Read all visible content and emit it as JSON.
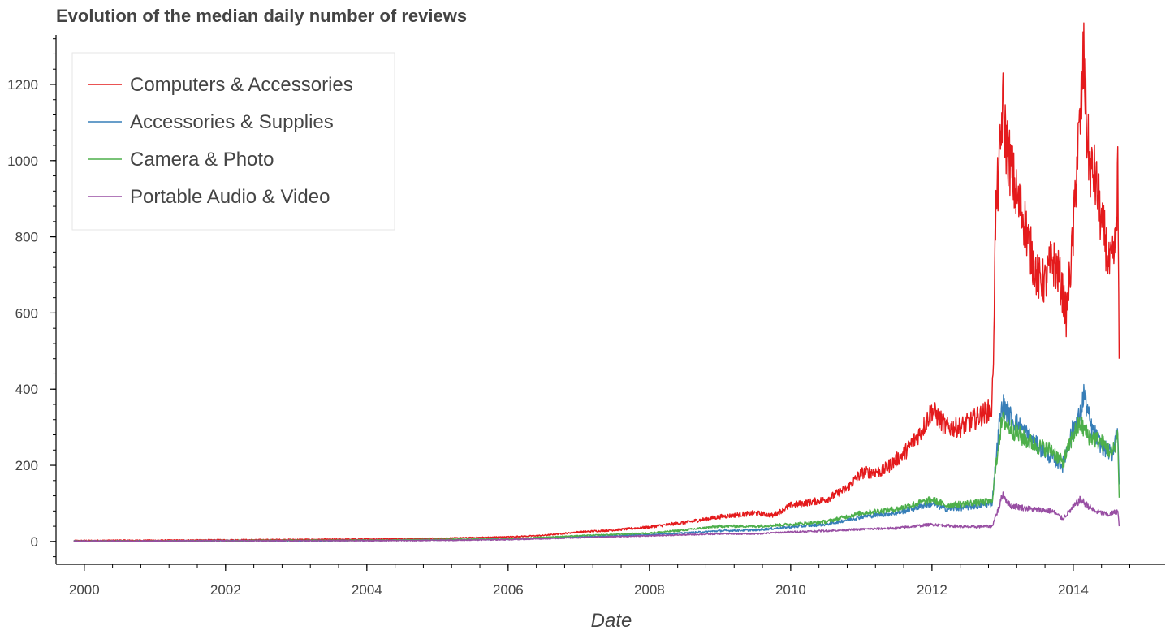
{
  "chart_data": {
    "type": "line",
    "title": "Evolution of the median daily number of reviews",
    "xlabel": "Date",
    "ylabel": "",
    "xlim": [
      1999.6,
      2015.3
    ],
    "ylim": [
      -60,
      1330
    ],
    "x_ticks": [
      2000,
      2002,
      2004,
      2006,
      2008,
      2010,
      2012,
      2014
    ],
    "x_tick_labels": [
      "2000",
      "2002",
      "2004",
      "2006",
      "2008",
      "2010",
      "2012",
      "2014"
    ],
    "y_ticks": [
      0,
      200,
      400,
      600,
      800,
      1000,
      1200
    ],
    "y_tick_labels": [
      "0",
      "200",
      "400",
      "600",
      "800",
      "1000",
      "1200"
    ],
    "grid": false,
    "legend_position": "top-left",
    "series": [
      {
        "name": "Computers & Accessories",
        "color": "#e41a1c",
        "points": [
          [
            1999.85,
            2
          ],
          [
            2000.5,
            3
          ],
          [
            2001,
            3
          ],
          [
            2002,
            4
          ],
          [
            2003,
            5
          ],
          [
            2004,
            6
          ],
          [
            2005,
            8
          ],
          [
            2005.5,
            10
          ],
          [
            2006,
            12
          ],
          [
            2006.5,
            16
          ],
          [
            2007,
            25
          ],
          [
            2007.5,
            30
          ],
          [
            2008,
            38
          ],
          [
            2008.5,
            50
          ],
          [
            2009,
            65
          ],
          [
            2009.5,
            75
          ],
          [
            2009.75,
            68
          ],
          [
            2010,
            95
          ],
          [
            2010.5,
            110
          ],
          [
            2010.8,
            140
          ],
          [
            2011,
            180
          ],
          [
            2011.3,
            185
          ],
          [
            2011.6,
            230
          ],
          [
            2011.85,
            290
          ],
          [
            2012,
            345
          ],
          [
            2012.2,
            300
          ],
          [
            2012.4,
            300
          ],
          [
            2012.6,
            320
          ],
          [
            2012.85,
            350
          ],
          [
            2012.87,
            500
          ],
          [
            2012.9,
            850
          ],
          [
            2012.97,
            1030
          ],
          [
            2013,
            1150
          ],
          [
            2013.05,
            1050
          ],
          [
            2013.2,
            900
          ],
          [
            2013.3,
            850
          ],
          [
            2013.4,
            760
          ],
          [
            2013.5,
            690
          ],
          [
            2013.6,
            680
          ],
          [
            2013.7,
            740
          ],
          [
            2013.8,
            700
          ],
          [
            2013.85,
            650
          ],
          [
            2013.9,
            590
          ],
          [
            2014,
            800
          ],
          [
            2014.05,
            1000
          ],
          [
            2014.1,
            1100
          ],
          [
            2014.15,
            1280
          ],
          [
            2014.2,
            1050
          ],
          [
            2014.25,
            970
          ],
          [
            2014.3,
            960
          ],
          [
            2014.35,
            910
          ],
          [
            2014.4,
            830
          ],
          [
            2014.45,
            800
          ],
          [
            2014.5,
            720
          ],
          [
            2014.55,
            730
          ],
          [
            2014.6,
            780
          ],
          [
            2014.63,
            970
          ],
          [
            2014.65,
            480
          ]
        ]
      },
      {
        "name": "Accessories & Supplies",
        "color": "#377eb8",
        "points": [
          [
            1999.85,
            1
          ],
          [
            2001,
            1
          ],
          [
            2002,
            2
          ],
          [
            2003,
            2
          ],
          [
            2004,
            3
          ],
          [
            2005,
            4
          ],
          [
            2006,
            6
          ],
          [
            2007,
            12
          ],
          [
            2008,
            18
          ],
          [
            2008.5,
            22
          ],
          [
            2009,
            28
          ],
          [
            2009.5,
            30
          ],
          [
            2010,
            38
          ],
          [
            2010.5,
            45
          ],
          [
            2011,
            65
          ],
          [
            2011.5,
            75
          ],
          [
            2012,
            100
          ],
          [
            2012.2,
            85
          ],
          [
            2012.5,
            90
          ],
          [
            2012.85,
            100
          ],
          [
            2012.95,
            300
          ],
          [
            2013,
            360
          ],
          [
            2013.1,
            330
          ],
          [
            2013.3,
            290
          ],
          [
            2013.5,
            250
          ],
          [
            2013.7,
            220
          ],
          [
            2013.85,
            200
          ],
          [
            2014,
            300
          ],
          [
            2014.1,
            330
          ],
          [
            2014.15,
            390
          ],
          [
            2014.25,
            300
          ],
          [
            2014.4,
            250
          ],
          [
            2014.55,
            230
          ],
          [
            2014.63,
            300
          ],
          [
            2014.65,
            150
          ]
        ]
      },
      {
        "name": "Camera & Photo",
        "color": "#4daf4a",
        "points": [
          [
            1999.85,
            1
          ],
          [
            2001,
            1
          ],
          [
            2002,
            2
          ],
          [
            2003,
            3
          ],
          [
            2004,
            3
          ],
          [
            2005,
            5
          ],
          [
            2006,
            7
          ],
          [
            2007,
            15
          ],
          [
            2008,
            22
          ],
          [
            2008.5,
            30
          ],
          [
            2009,
            40
          ],
          [
            2009.5,
            40
          ],
          [
            2010,
            45
          ],
          [
            2010.5,
            52
          ],
          [
            2011,
            75
          ],
          [
            2011.5,
            85
          ],
          [
            2012,
            110
          ],
          [
            2012.2,
            95
          ],
          [
            2012.5,
            100
          ],
          [
            2012.85,
            105
          ],
          [
            2012.95,
            270
          ],
          [
            2013,
            320
          ],
          [
            2013.1,
            300
          ],
          [
            2013.3,
            270
          ],
          [
            2013.5,
            250
          ],
          [
            2013.7,
            240
          ],
          [
            2013.85,
            205
          ],
          [
            2014,
            280
          ],
          [
            2014.1,
            310
          ],
          [
            2014.2,
            280
          ],
          [
            2014.4,
            260
          ],
          [
            2014.55,
            230
          ],
          [
            2014.63,
            280
          ],
          [
            2014.65,
            115
          ]
        ]
      },
      {
        "name": "Portable Audio & Video",
        "color": "#984ea3",
        "points": [
          [
            1999.85,
            1
          ],
          [
            2001,
            1
          ],
          [
            2002,
            2
          ],
          [
            2003,
            2
          ],
          [
            2004,
            2
          ],
          [
            2005,
            3
          ],
          [
            2006,
            5
          ],
          [
            2007,
            10
          ],
          [
            2008,
            15
          ],
          [
            2009,
            20
          ],
          [
            2009.5,
            20
          ],
          [
            2010,
            25
          ],
          [
            2010.5,
            28
          ],
          [
            2011,
            32
          ],
          [
            2011.5,
            35
          ],
          [
            2012,
            45
          ],
          [
            2012.5,
            38
          ],
          [
            2012.85,
            40
          ],
          [
            2012.95,
            90
          ],
          [
            2013,
            125
          ],
          [
            2013.1,
            95
          ],
          [
            2013.4,
            85
          ],
          [
            2013.7,
            80
          ],
          [
            2013.85,
            60
          ],
          [
            2014,
            90
          ],
          [
            2014.1,
            110
          ],
          [
            2014.3,
            80
          ],
          [
            2014.5,
            70
          ],
          [
            2014.63,
            80
          ],
          [
            2014.65,
            40
          ]
        ]
      }
    ]
  }
}
